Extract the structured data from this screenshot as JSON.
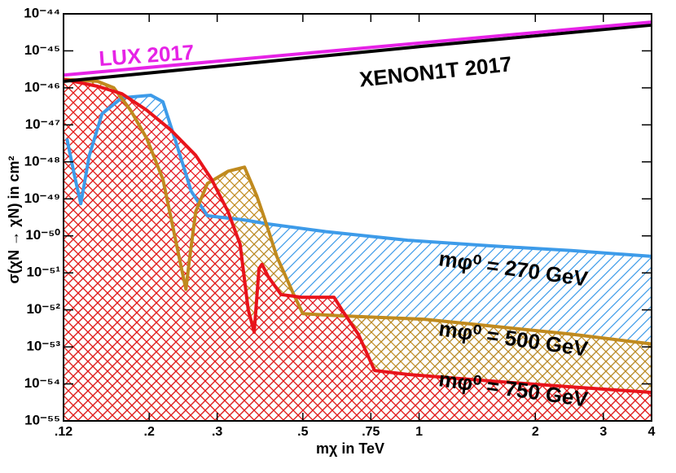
{
  "chart_data": {
    "type": "line",
    "x_label": "mχ in TeV",
    "y_label": "σ(χN → χN) in cm²",
    "xscale": "log",
    "yscale": "log",
    "xlim": [
      0.12,
      4
    ],
    "ylim": [
      1e-55,
      1e-44
    ],
    "xticks": [
      {
        "value": 0.12,
        "label": ".12"
      },
      {
        "value": 0.2,
        "label": ".2"
      },
      {
        "value": 0.3,
        "label": ".3"
      },
      {
        "value": 0.5,
        "label": ".5"
      },
      {
        "value": 0.75,
        "label": ".75"
      },
      1,
      2,
      3,
      4
    ],
    "yticks": [
      {
        "value": 1e-55,
        "label": "10⁻⁵⁵"
      },
      {
        "value": 1e-54,
        "label": "10⁻⁵⁴"
      },
      {
        "value": 1e-53,
        "label": "10⁻⁵³"
      },
      {
        "value": 1e-52,
        "label": "10⁻⁵²"
      },
      {
        "value": 1e-51,
        "label": "10⁻⁵¹"
      },
      {
        "value": 1e-50,
        "label": "10⁻⁵⁰"
      },
      {
        "value": 1e-49,
        "label": "10⁻⁴⁹"
      },
      {
        "value": 1e-48,
        "label": "10⁻⁴⁸"
      },
      {
        "value": 1e-47,
        "label": "10⁻⁴⁷"
      },
      {
        "value": 1e-46,
        "label": "10⁻⁴⁶"
      },
      {
        "value": 1e-45,
        "label": "10⁻⁴⁵"
      },
      {
        "value": 1e-44,
        "label": "10⁻⁴⁴"
      }
    ],
    "series": [
      {
        "name": "mφ⁰ = 270 GeV",
        "color": "#3d9be9",
        "hatch": "diagonal",
        "x": [
          0.1224,
          0.128,
          0.133,
          0.14,
          0.151,
          0.17,
          0.202,
          0.217,
          0.233,
          0.257,
          0.283,
          0.352,
          0.407,
          0.573,
          0.934,
          1.52,
          2.48,
          4
        ],
        "values": [
          4.3e-48,
          4.4e-49,
          7.4e-50,
          1.5e-48,
          2e-47,
          5.4e-47,
          6.3e-47,
          4.2e-47,
          4.3e-48,
          1.6e-49,
          3.5e-50,
          2.7e-50,
          2.1e-50,
          1.3e-50,
          7.6e-51,
          5.4e-51,
          4e-51,
          2.8e-51
        ]
      },
      {
        "name": "mφ⁰ = 500 GeV",
        "color": "#c08a1e",
        "hatch": "cross",
        "x": [
          0.12,
          0.147,
          0.162,
          0.179,
          0.197,
          0.217,
          0.233,
          0.245,
          0.249,
          0.254,
          0.264,
          0.283,
          0.32,
          0.353,
          0.38,
          0.399,
          0.428,
          0.472,
          0.5,
          0.631,
          1.03,
          1.52,
          2.48,
          4
        ],
        "values": [
          1.7e-46,
          1.5e-46,
          1e-46,
          2.5e-47,
          4.3e-48,
          3.4e-49,
          9.8e-51,
          7.8e-52,
          3.6e-52,
          2.1e-51,
          4.5e-50,
          2.6e-49,
          5.6e-49,
          7.2e-49,
          1.2e-49,
          2.7e-50,
          2.8e-51,
          2.8e-52,
          7.9e-53,
          6.9e-53,
          5.6e-53,
          3.7e-53,
          2.2e-53,
          1.2e-53
        ]
      },
      {
        "name": "mφ⁰ = 750 GeV",
        "color": "#e8141b",
        "hatch": "cross",
        "x": [
          0.12,
          0.147,
          0.17,
          0.197,
          0.228,
          0.264,
          0.29,
          0.32,
          0.344,
          0.361,
          0.374,
          0.385,
          0.392,
          0.407,
          0.439,
          0.496,
          0.602,
          0.631,
          0.696,
          0.767,
          0.934,
          1.52,
          2.48,
          4
        ],
        "values": [
          1.7e-46,
          1.1e-46,
          6.9e-47,
          2.5e-47,
          7.1e-48,
          1.5e-48,
          3.4e-49,
          4.5e-50,
          5.9e-51,
          1e-52,
          2.5e-53,
          1.3e-51,
          1.7e-51,
          7.8e-52,
          2.6e-52,
          2.2e-52,
          2.2e-52,
          1e-52,
          2.2e-53,
          2.3e-54,
          1.8e-54,
          1.2e-54,
          8.3e-55,
          5.9e-55
        ]
      },
      {
        "name": "XENON1T 2017",
        "color": "#000000",
        "x": [
          0.12,
          1,
          4
        ],
        "values": [
          1.5e-46,
          1.3e-45,
          5e-45
        ]
      },
      {
        "name": "LUX 2017",
        "color": "#e623e6",
        "x": [
          0.12,
          4
        ],
        "values": [
          2.2e-46,
          6e-45
        ]
      }
    ]
  }
}
